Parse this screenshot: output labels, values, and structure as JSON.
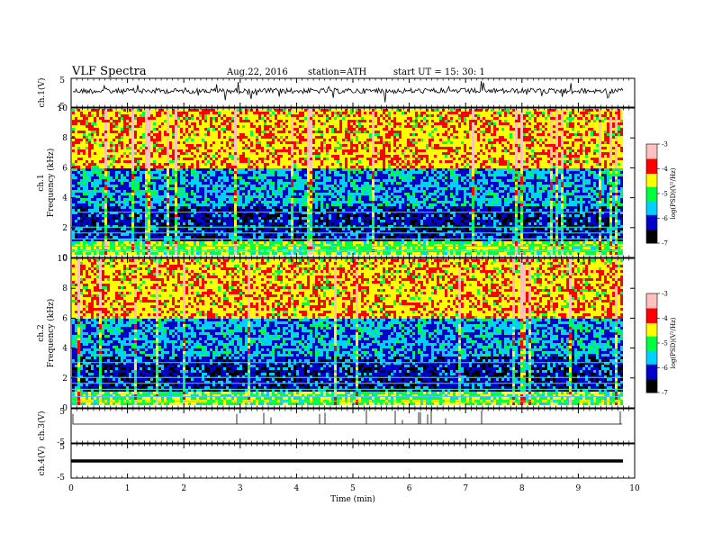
{
  "header": {
    "title": "VLF  Spectra",
    "date": "Aug.22, 2016",
    "station": "station=ATH",
    "start": "start  UT  =    15: 30: 1"
  },
  "chart_data": [
    {
      "type": "line",
      "name": "ch1",
      "ylabel": "ch.1(V)",
      "ylim": [
        -5,
        5
      ],
      "yticks": [
        "5",
        "-5"
      ]
    },
    {
      "type": "heatmap",
      "name": "ch1-spectrogram",
      "ylabel": "ch.1\nFrequency (kHz)",
      "ylim": [
        0,
        10
      ],
      "yticks": [
        "10",
        "8",
        "6",
        "4",
        "2",
        "0"
      ],
      "colorbar": {
        "label": "log(PSD)(V²/Hz)",
        "ticks": [
          "-3",
          "-4",
          "-5",
          "-6",
          "-7"
        ],
        "range": [
          -7,
          -3
        ]
      }
    },
    {
      "type": "heatmap",
      "name": "ch2-spectrogram",
      "ylabel": "ch.2\nFrequency (kHz)",
      "ylim": [
        0,
        10
      ],
      "yticks": [
        "10",
        "8",
        "6",
        "4",
        "2",
        "0"
      ],
      "colorbar": {
        "label": "log(PSD)(V²/Hz)",
        "ticks": [
          "-3",
          "-4",
          "-5",
          "-6",
          "-7"
        ],
        "range": [
          -7,
          -3
        ]
      }
    },
    {
      "type": "line",
      "name": "ch3",
      "ylabel": "ch.3(V)",
      "ylim": [
        -5,
        5
      ],
      "yticks": [
        "5",
        "-5"
      ]
    },
    {
      "type": "line",
      "name": "ch4",
      "ylabel": "ch.4(V)",
      "ylim": [
        -5,
        5
      ],
      "yticks": [
        "5",
        "-5"
      ]
    }
  ],
  "xaxis": {
    "label": "Time  (min)",
    "ticks": [
      "0",
      "1",
      "2",
      "3",
      "4",
      "5",
      "6",
      "7",
      "8",
      "9",
      "10"
    ],
    "xlim": [
      0,
      10
    ]
  },
  "colors": {
    "lowest": "#000000",
    "low": "#0000c8",
    "mid_low": "#00d0ff",
    "mid": "#00ff40",
    "mid_high": "#ffff00",
    "high": "#ff0000",
    "highest": "#ffc0c0"
  }
}
